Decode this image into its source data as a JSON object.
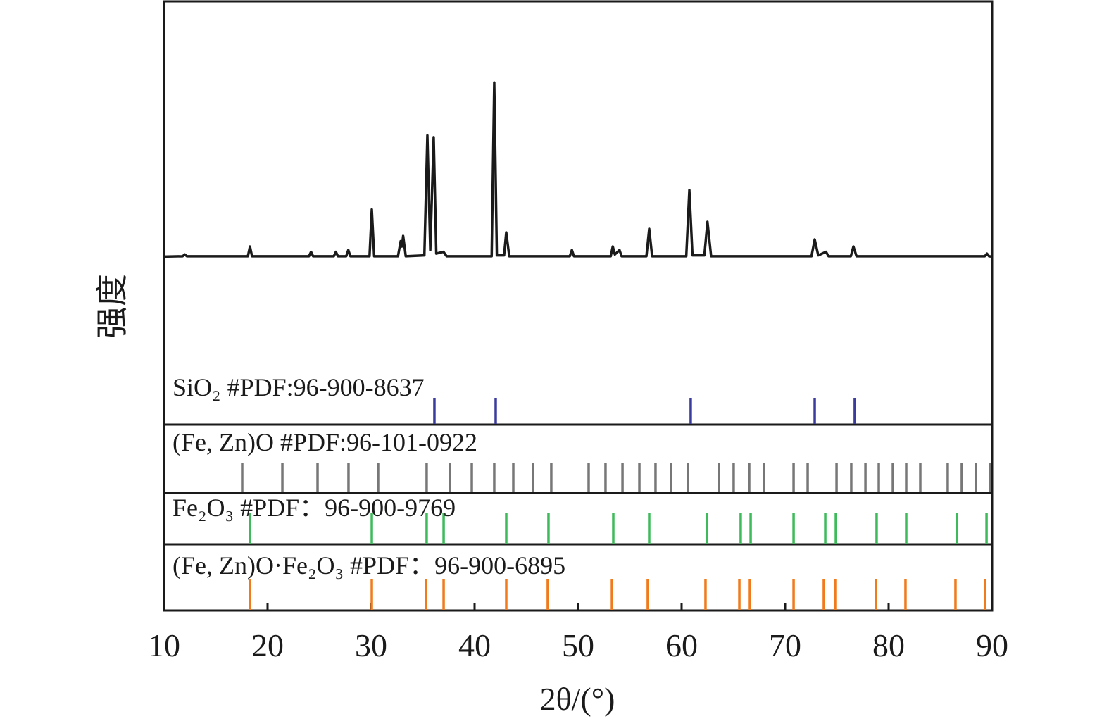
{
  "chart_data": {
    "type": "line",
    "x_label": "2θ/(°)",
    "y_label": "强度",
    "xlim": [
      10,
      90
    ],
    "xticks": [
      10,
      20,
      30,
      40,
      50,
      60,
      70,
      80,
      90
    ],
    "ylim": [
      -95,
      145
    ],
    "color": "#1a1a1a",
    "x": [
      10,
      11.8,
      12,
      12.2,
      18.1,
      18.3,
      18.5,
      24.0,
      24.2,
      24.4,
      26.4,
      26.6,
      26.8,
      27.6,
      27.8,
      28.0,
      29.85,
      30.07,
      30.3,
      32.6,
      32.86,
      32.98,
      33.1,
      33.35,
      35.15,
      35.44,
      35.72,
      36.05,
      36.3,
      37.0,
      37.3,
      41.65,
      41.9,
      42.15,
      42.85,
      43.06,
      43.35,
      49.2,
      49.4,
      49.6,
      53.15,
      53.35,
      53.55,
      54.0,
      54.2,
      56.6,
      56.87,
      57.15,
      60.45,
      60.75,
      61.05,
      62.2,
      62.5,
      62.85,
      72.55,
      72.86,
      73.2,
      73.95,
      74.2,
      76.35,
      76.6,
      76.9,
      89.3,
      89.5,
      89.7,
      90
    ],
    "values": [
      0.3,
      0.5,
      1.5,
      0.5,
      0.5,
      6,
      0.5,
      0.5,
      3,
      0.5,
      0.5,
      3,
      0.5,
      0.5,
      4,
      0.5,
      0.5,
      27,
      0.5,
      0.5,
      9,
      6,
      12,
      0.5,
      1,
      69,
      4,
      68,
      2,
      3,
      0.5,
      0.5,
      99,
      1,
      1,
      14,
      0.5,
      0.5,
      4,
      0.5,
      0.5,
      6,
      1.5,
      4,
      0.5,
      0.5,
      16,
      0.5,
      0.5,
      38,
      1,
      1,
      20,
      0.5,
      0.5,
      10,
      1,
      3,
      0.5,
      0.5,
      6,
      0.5,
      0.5,
      2,
      0.5,
      0.3
    ],
    "references": [
      {
        "name": "SiO₂ #PDF:96-900-8637",
        "color": "#3b3b9e",
        "positions": [
          36.12,
          42.04,
          60.88,
          72.86,
          76.73
        ]
      },
      {
        "name": "(Fe, Zn)O #PDF:96-101-0922",
        "color": "#777777",
        "positions": [
          17.55,
          21.43,
          24.83,
          27.82,
          30.68,
          35.37,
          37.62,
          39.73,
          41.9,
          43.74,
          45.65,
          47.41,
          51.02,
          52.65,
          54.29,
          55.92,
          57.48,
          58.98,
          60.61,
          63.61,
          65.03,
          66.53,
          67.96,
          70.82,
          72.18,
          74.97,
          76.39,
          77.76,
          79.05,
          80.41,
          81.7,
          83.06,
          85.71,
          87.07,
          88.44,
          89.8
        ]
      },
      {
        "name": "Fe₂O₃ #PDF：96-900-9769",
        "color": "#3dbb5a",
        "positions": [
          18.3,
          30.07,
          35.37,
          37.01,
          43.06,
          47.14,
          53.4,
          56.87,
          62.45,
          65.71,
          66.67,
          70.82,
          73.88,
          74.9,
          78.84,
          81.7,
          86.6,
          89.46
        ]
      },
      {
        "name": "(Fe, Zn)O·Fe₂O₃ #PDF：96-900-6895",
        "color": "#f07a1c",
        "positions": [
          18.3,
          30.07,
          35.31,
          37.01,
          43.06,
          47.07,
          53.27,
          56.73,
          62.31,
          65.58,
          66.6,
          70.82,
          73.74,
          74.83,
          78.78,
          81.63,
          86.46,
          89.32
        ]
      }
    ]
  }
}
